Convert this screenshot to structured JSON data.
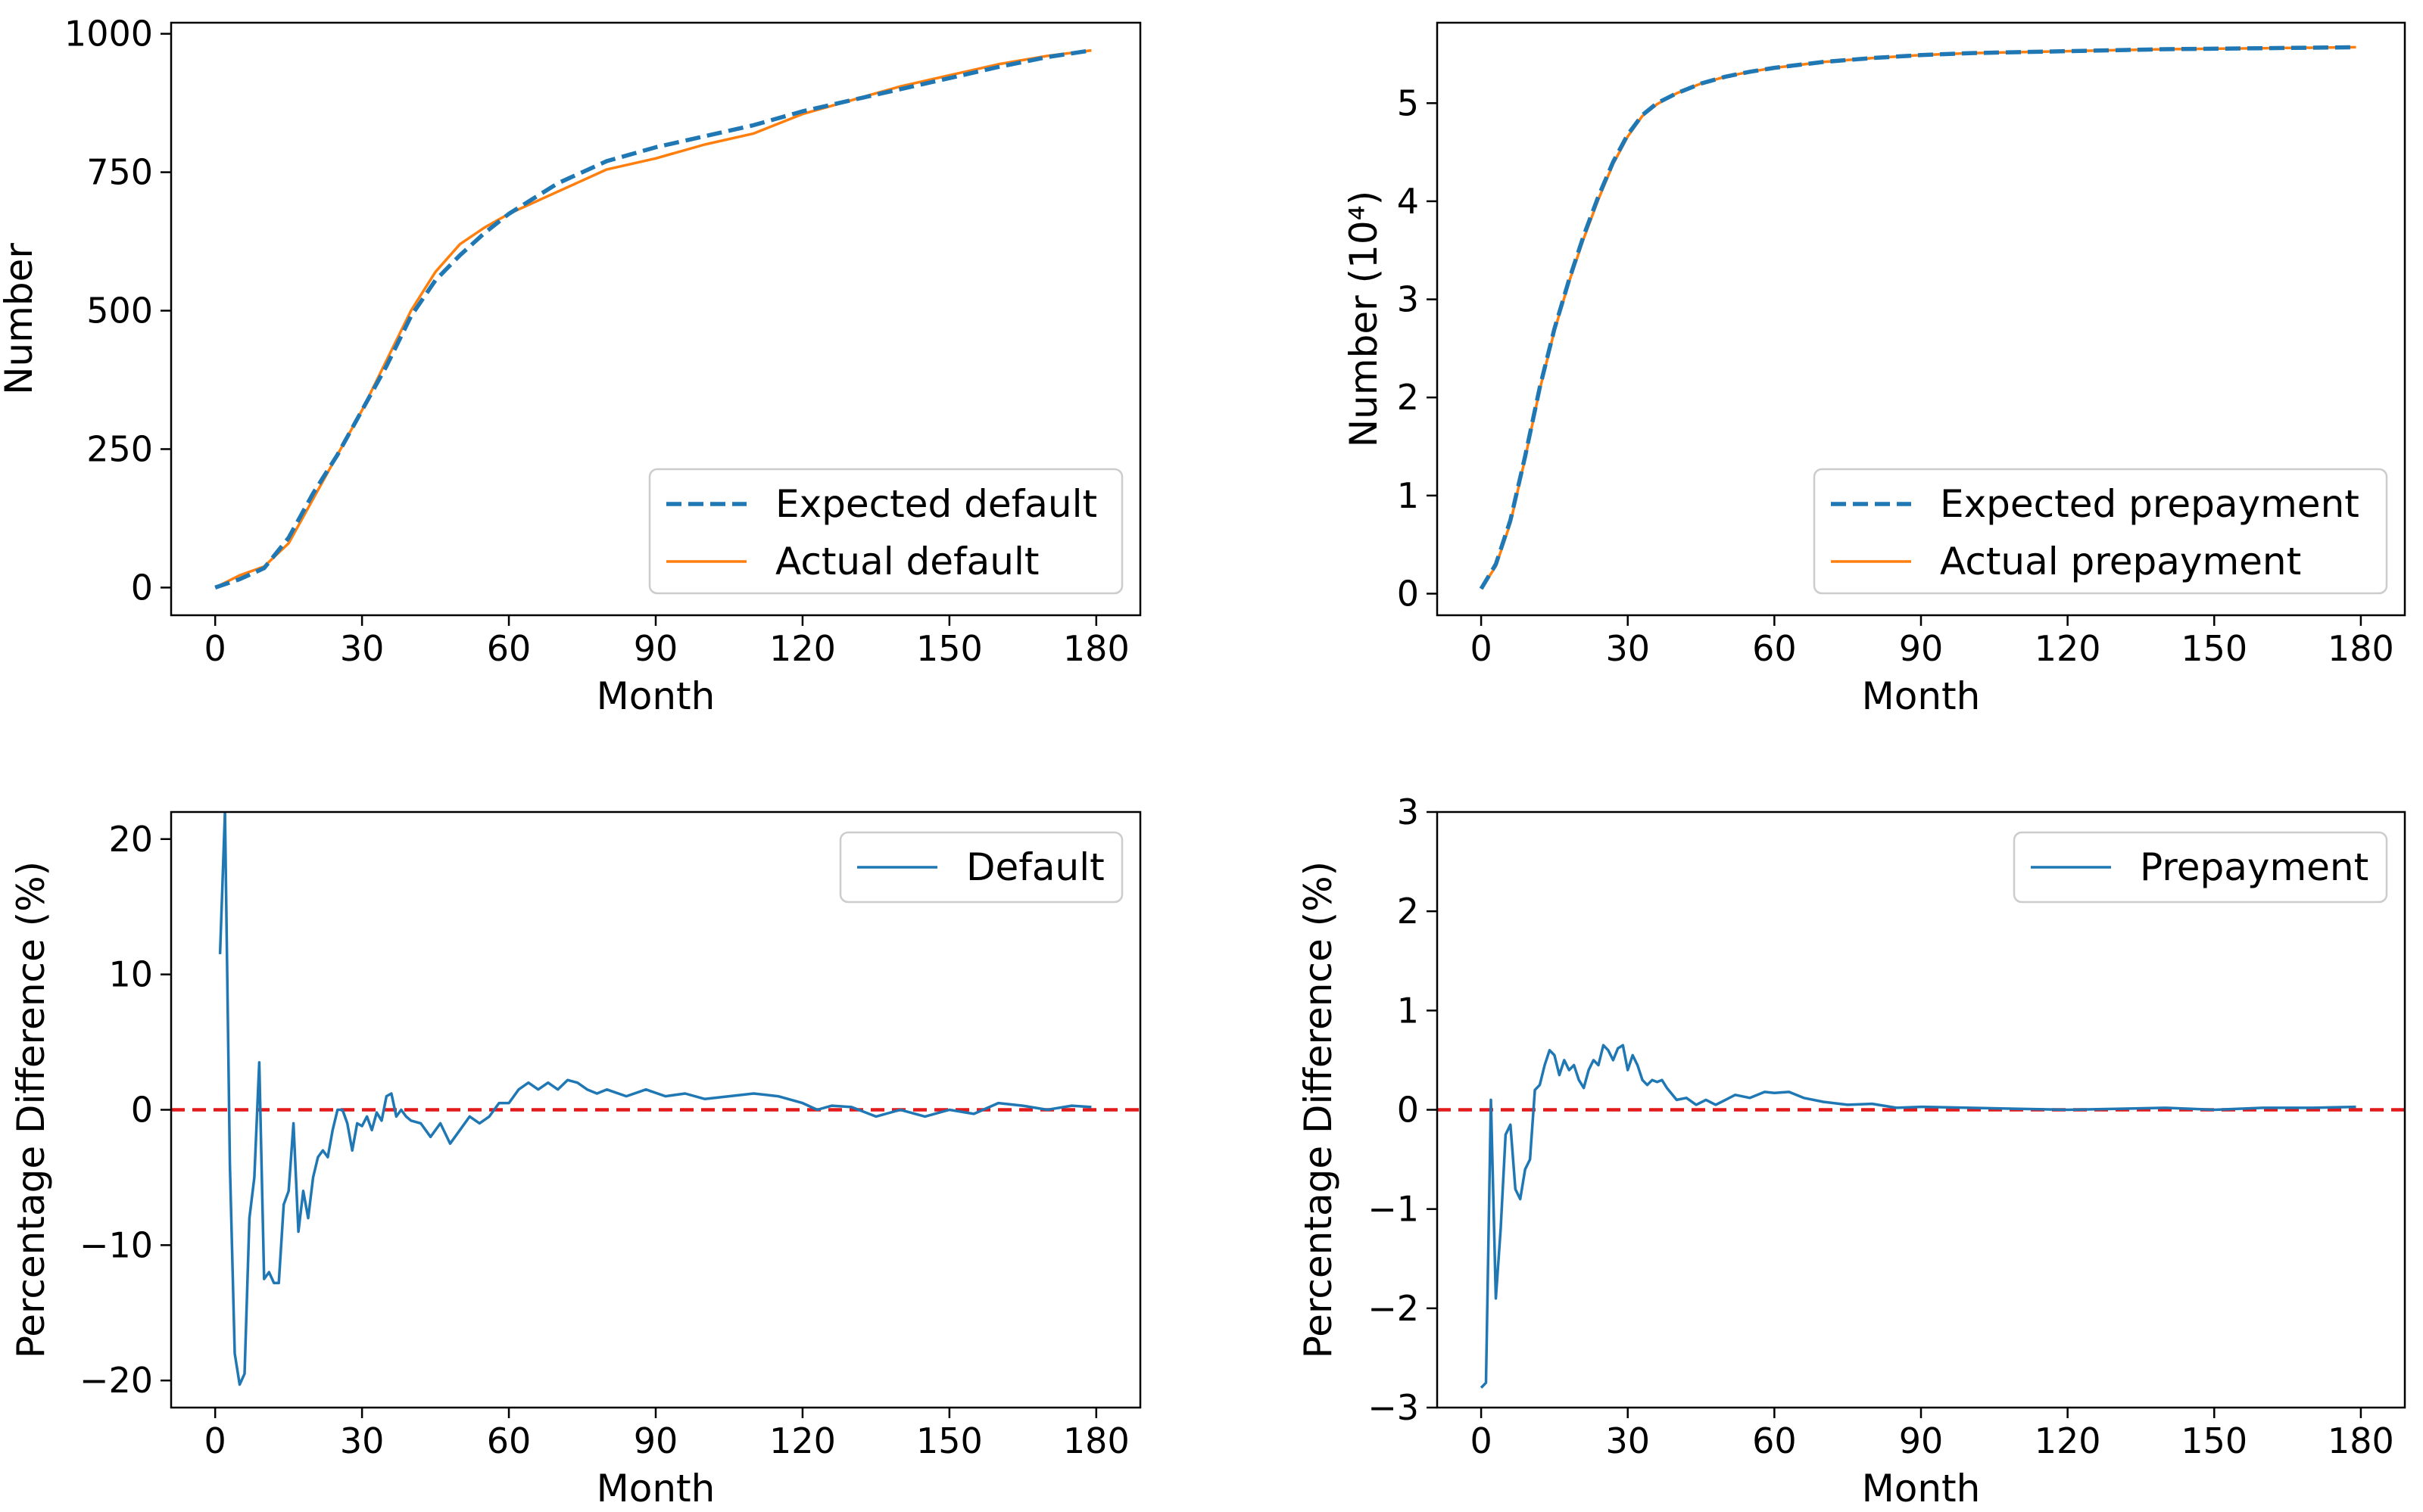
{
  "chart_data": [
    {
      "type": "line",
      "xlabel": "Month",
      "ylabel": "Number",
      "xlim": [
        -9,
        189
      ],
      "ylim": [
        -50,
        1020
      ],
      "xticks": [
        0,
        30,
        60,
        90,
        120,
        150,
        180
      ],
      "yticks": [
        0,
        250,
        500,
        750,
        1000
      ],
      "grid": false,
      "legend_position": "lower-right",
      "series": [
        {
          "name": "Expected default",
          "style": "dashed",
          "color": "#1f77b4",
          "x": [
            0,
            5,
            10,
            15,
            20,
            25,
            30,
            35,
            40,
            45,
            50,
            55,
            60,
            70,
            80,
            90,
            100,
            110,
            120,
            130,
            140,
            150,
            160,
            170,
            179
          ],
          "y": [
            0,
            15,
            35,
            90,
            170,
            240,
            320,
            400,
            490,
            555,
            600,
            640,
            675,
            730,
            770,
            795,
            815,
            835,
            860,
            880,
            900,
            920,
            940,
            958,
            970
          ]
        },
        {
          "name": "Actual default",
          "style": "solid",
          "color": "#ff7f0e",
          "x": [
            0,
            5,
            10,
            15,
            20,
            25,
            30,
            35,
            40,
            45,
            50,
            55,
            60,
            70,
            80,
            90,
            100,
            110,
            120,
            130,
            140,
            150,
            160,
            170,
            179
          ],
          "y": [
            0,
            22,
            38,
            80,
            160,
            240,
            320,
            410,
            500,
            570,
            620,
            650,
            675,
            715,
            755,
            775,
            800,
            820,
            855,
            880,
            905,
            925,
            945,
            960,
            970
          ]
        }
      ]
    },
    {
      "type": "line",
      "xlabel": "Month",
      "ylabel": "Number (10⁴)",
      "xlim": [
        -9,
        189
      ],
      "ylim": [
        -0.22,
        5.82
      ],
      "xticks": [
        0,
        30,
        60,
        90,
        120,
        150,
        180
      ],
      "yticks": [
        0,
        1,
        2,
        3,
        4,
        5
      ],
      "grid": false,
      "legend_position": "lower-right",
      "series": [
        {
          "name": "Expected prepayment",
          "style": "dashed",
          "color": "#1f77b4",
          "x": [
            0,
            3,
            6,
            9,
            12,
            15,
            18,
            21,
            24,
            27,
            30,
            33,
            36,
            40,
            45,
            50,
            55,
            60,
            70,
            80,
            90,
            100,
            120,
            140,
            160,
            179
          ],
          "y": [
            0.05,
            0.3,
            0.75,
            1.4,
            2.1,
            2.7,
            3.2,
            3.65,
            4.05,
            4.4,
            4.68,
            4.88,
            5.0,
            5.1,
            5.2,
            5.27,
            5.32,
            5.36,
            5.42,
            5.46,
            5.49,
            5.51,
            5.53,
            5.55,
            5.56,
            5.57
          ]
        },
        {
          "name": "Actual prepayment",
          "style": "solid",
          "color": "#ff7f0e",
          "x": [
            0,
            3,
            6,
            9,
            12,
            15,
            18,
            21,
            24,
            27,
            30,
            33,
            36,
            40,
            45,
            50,
            55,
            60,
            70,
            80,
            90,
            100,
            120,
            140,
            160,
            179
          ],
          "y": [
            0.05,
            0.28,
            0.72,
            1.38,
            2.08,
            2.68,
            3.18,
            3.62,
            4.02,
            4.38,
            4.66,
            4.87,
            4.99,
            5.1,
            5.2,
            5.27,
            5.32,
            5.36,
            5.42,
            5.46,
            5.49,
            5.51,
            5.53,
            5.55,
            5.56,
            5.57
          ]
        }
      ]
    },
    {
      "type": "line",
      "xlabel": "Month",
      "ylabel": "Percentage Difference (%)",
      "xlim": [
        -9,
        189
      ],
      "ylim": [
        -22,
        22
      ],
      "xticks": [
        0,
        30,
        60,
        90,
        120,
        150,
        180
      ],
      "yticks": [
        -20,
        -10,
        0,
        10,
        20
      ],
      "grid": false,
      "legend_position": "top-right",
      "reference_line": {
        "y": 0,
        "style": "dashed",
        "color": "#e31a1c"
      },
      "series": [
        {
          "name": "Default",
          "style": "solid",
          "color": "#1f77b4",
          "x": [
            1,
            2,
            3,
            4,
            5,
            6,
            7,
            8,
            9,
            10,
            11,
            12,
            13,
            14,
            15,
            16,
            17,
            18,
            19,
            20,
            21,
            22,
            23,
            24,
            25,
            26,
            27,
            28,
            29,
            30,
            31,
            32,
            33,
            34,
            35,
            36,
            37,
            38,
            39,
            40,
            42,
            44,
            46,
            48,
            50,
            52,
            54,
            56,
            58,
            60,
            62,
            64,
            66,
            68,
            70,
            72,
            74,
            76,
            78,
            80,
            84,
            88,
            92,
            96,
            100,
            105,
            110,
            115,
            120,
            123,
            126,
            130,
            135,
            140,
            145,
            150,
            155,
            160,
            165,
            170,
            175,
            179
          ],
          "y": [
            11.5,
            22,
            -4,
            -18,
            -20.3,
            -19.5,
            -8,
            -5,
            3.5,
            -12.5,
            -12,
            -12.8,
            -12.8,
            -7,
            -6,
            -1,
            -9,
            -6,
            -8,
            -5,
            -3.5,
            -3,
            -3.5,
            -1.5,
            0,
            0,
            -1,
            -3,
            -1,
            -1.2,
            -0.5,
            -1.5,
            -0.2,
            -0.8,
            1,
            1.2,
            -0.5,
            0,
            -0.5,
            -0.8,
            -1,
            -2,
            -1,
            -2.5,
            -1.5,
            -0.5,
            -1,
            -0.5,
            0.5,
            0.5,
            1.5,
            2,
            1.5,
            2,
            1.5,
            2.2,
            2,
            1.5,
            1.2,
            1.5,
            1,
            1.5,
            1,
            1.2,
            0.8,
            1,
            1.2,
            1,
            0.5,
            0,
            0.3,
            0.2,
            -0.5,
            0,
            -0.5,
            0,
            -0.3,
            0.5,
            0.3,
            0,
            0.3,
            0.2
          ]
        }
      ]
    },
    {
      "type": "line",
      "xlabel": "Month",
      "ylabel": "Percentage Difference (%)",
      "xlim": [
        -9,
        189
      ],
      "ylim": [
        -3,
        3
      ],
      "xticks": [
        0,
        30,
        60,
        90,
        120,
        150,
        180
      ],
      "yticks": [
        -3,
        -2,
        -1,
        0,
        1,
        2,
        3
      ],
      "grid": false,
      "legend_position": "top-right",
      "reference_line": {
        "y": 0,
        "style": "dashed",
        "color": "#e31a1c"
      },
      "series": [
        {
          "name": "Prepayment",
          "style": "solid",
          "color": "#1f77b4",
          "x": [
            0,
            1,
            2,
            3,
            4,
            5,
            6,
            7,
            8,
            9,
            10,
            11,
            12,
            13,
            14,
            15,
            16,
            17,
            18,
            19,
            20,
            21,
            22,
            23,
            24,
            25,
            26,
            27,
            28,
            29,
            30,
            31,
            32,
            33,
            34,
            35,
            36,
            37,
            38,
            40,
            42,
            44,
            46,
            48,
            50,
            52,
            55,
            58,
            60,
            63,
            66,
            70,
            75,
            80,
            85,
            90,
            100,
            110,
            120,
            130,
            140,
            150,
            160,
            170,
            179
          ],
          "y": [
            -2.8,
            -2.75,
            0.1,
            -1.9,
            -1.2,
            -0.25,
            -0.15,
            -0.8,
            -0.9,
            -0.6,
            -0.5,
            0.2,
            0.25,
            0.45,
            0.6,
            0.55,
            0.35,
            0.5,
            0.4,
            0.45,
            0.3,
            0.22,
            0.4,
            0.5,
            0.45,
            0.65,
            0.6,
            0.5,
            0.62,
            0.65,
            0.4,
            0.55,
            0.45,
            0.3,
            0.25,
            0.3,
            0.28,
            0.3,
            0.22,
            0.1,
            0.12,
            0.05,
            0.1,
            0.05,
            0.1,
            0.15,
            0.12,
            0.18,
            0.17,
            0.18,
            0.12,
            0.08,
            0.05,
            0.06,
            0.02,
            0.03,
            0.02,
            0.01,
            0.0,
            0.01,
            0.02,
            0.0,
            0.02,
            0.02,
            0.03
          ]
        }
      ]
    }
  ]
}
